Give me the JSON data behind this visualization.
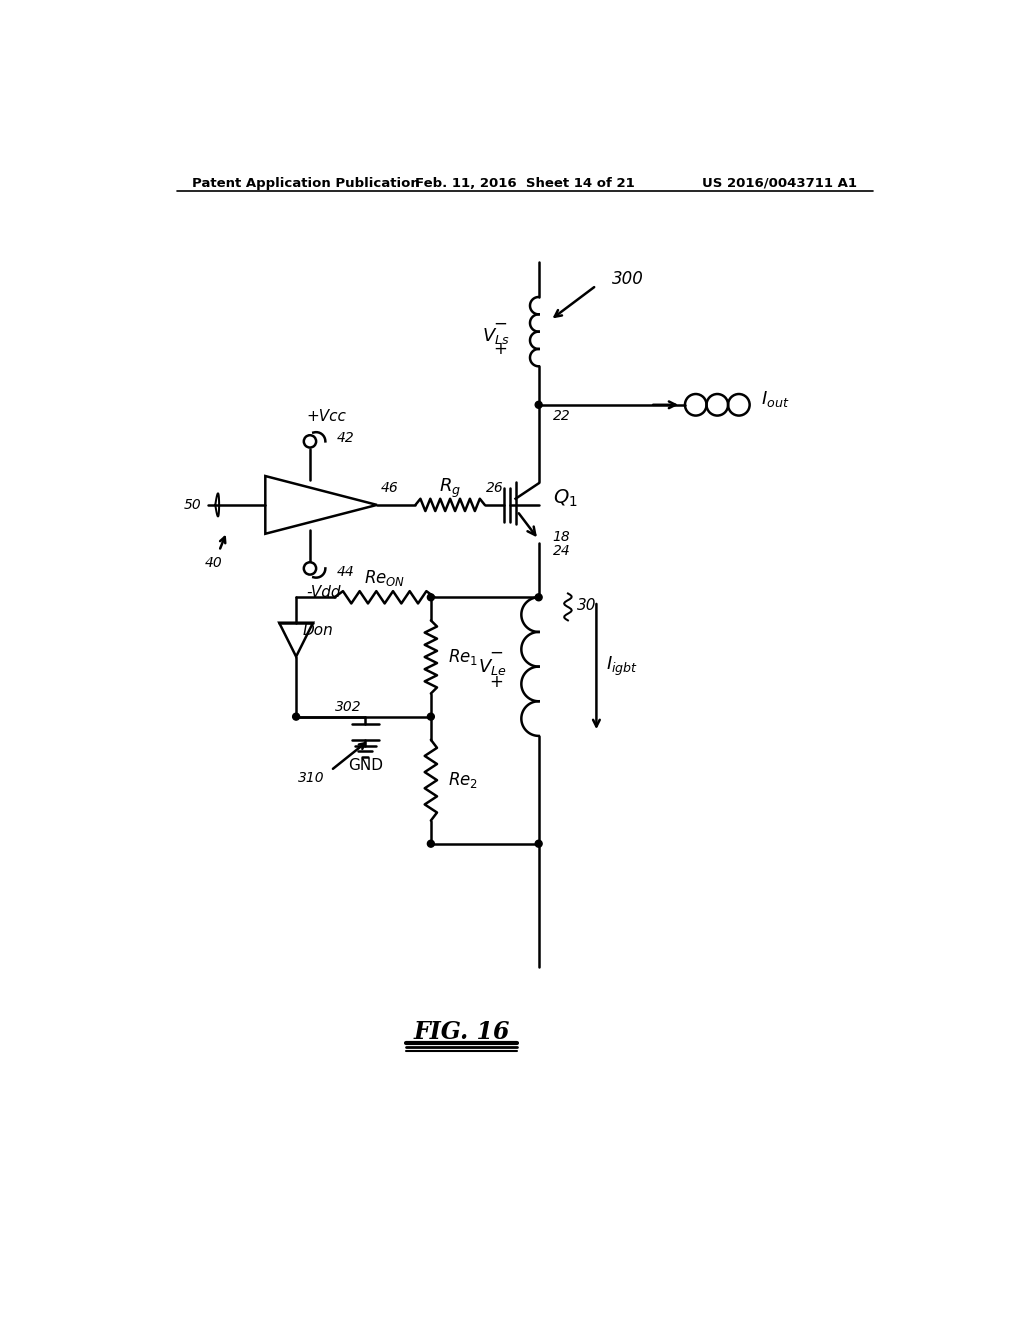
{
  "bg_color": "#ffffff",
  "line_color": "#000000",
  "header_left": "Patent Application Publication",
  "header_center": "Feb. 11, 2016  Sheet 14 of 21",
  "header_right": "US 2016/0043711 A1"
}
